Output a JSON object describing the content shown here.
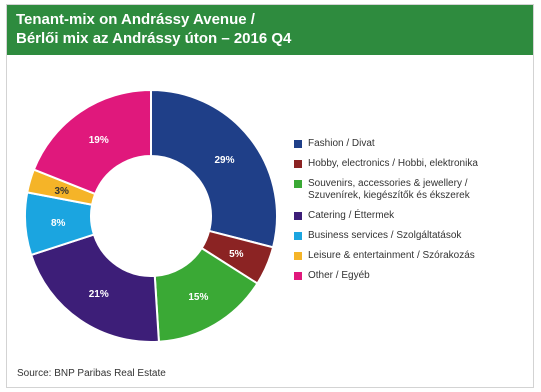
{
  "header": {
    "title": "Tenant-mix on Andrássy Avenue /",
    "subtitle": "Bérlői mix az Andrássy úton – 2016 Q4"
  },
  "source": "Source: BNP Paribas Real Estate",
  "chart_data": {
    "type": "pie",
    "style": "donut",
    "title": "Tenant-mix on Andrássy Avenue / Bérlői mix az Andrássy úton – 2016 Q4",
    "legend_position": "right",
    "categories": [
      "Fashion / Divat",
      "Hobby, electronics / Hobbi, elektronika",
      "Souvenirs, accessories & jewellery / Szuvenírek, kiegészítők és ékszerek",
      "Catering / Éttermek",
      "Business services / Szolgáltatások",
      "Leisure & entertainment / Szórakozás",
      "Other / Egyéb"
    ],
    "legend_lines": [
      [
        "Fashion / Divat"
      ],
      [
        "Hobby, electronics / Hobbi, elektronika"
      ],
      [
        "Souvenirs, accessories & jewellery /",
        "Szuvenírek, kiegészítők és ékszerek"
      ],
      [
        "Catering / Éttermek"
      ],
      [
        "Business services / Szolgáltatások"
      ],
      [
        "Leisure & entertainment / Szórakozás"
      ],
      [
        "Other / Egyéb"
      ]
    ],
    "values": [
      29,
      5,
      15,
      21,
      8,
      3,
      19
    ],
    "labels": [
      "29%",
      "5%",
      "15%",
      "21%",
      "8%",
      "3%",
      "19%"
    ],
    "colors": [
      "#1f3f88",
      "#8b2323",
      "#3aa935",
      "#3d1e78",
      "#1ba5e0",
      "#f5b428",
      "#e0187c"
    ]
  }
}
